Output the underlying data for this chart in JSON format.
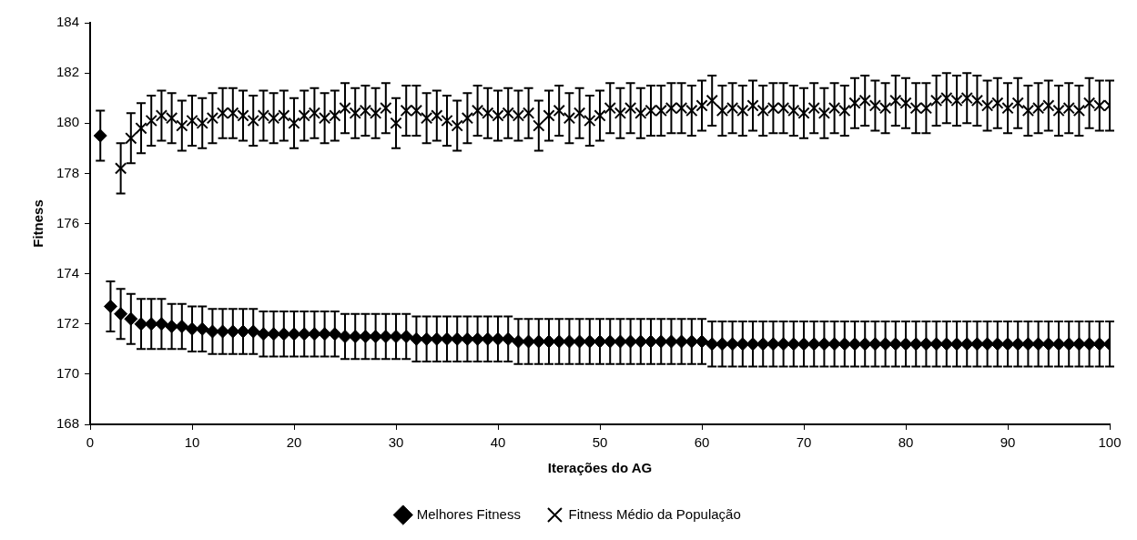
{
  "chart_data": {
    "type": "scatter",
    "xlabel": "Iterações do AG",
    "ylabel": "Fitness",
    "xlim": [
      0,
      100
    ],
    "xticks": [
      0,
      10,
      20,
      30,
      40,
      50,
      60,
      70,
      80,
      90,
      100
    ],
    "ylim": [
      168,
      184
    ],
    "yticks": [
      168,
      170,
      172,
      174,
      176,
      178,
      180,
      182,
      184
    ],
    "grid": false,
    "legend": "bottom",
    "series": [
      {
        "name": "Melhores Fitness",
        "color": "#000000",
        "marker": "diamond",
        "x": [
          1,
          2,
          3,
          4,
          5,
          6,
          7,
          8,
          9,
          10,
          11,
          12,
          13,
          14,
          15,
          16,
          17,
          18,
          19,
          20,
          21,
          22,
          23,
          24,
          25,
          26,
          27,
          28,
          29,
          30,
          31,
          32,
          33,
          34,
          35,
          36,
          37,
          38,
          39,
          40,
          41,
          42,
          43,
          44,
          45,
          46,
          47,
          48,
          49,
          50,
          51,
          52,
          53,
          54,
          55,
          56,
          57,
          58,
          59,
          60,
          61,
          62,
          63,
          64,
          65,
          66,
          67,
          68,
          69,
          70,
          71,
          72,
          73,
          74,
          75,
          76,
          77,
          78,
          79,
          80,
          81,
          82,
          83,
          84,
          85,
          86,
          87,
          88,
          89,
          90,
          91,
          92,
          93,
          94,
          95,
          96,
          97,
          98,
          99,
          100
        ],
        "values": [
          179.5,
          172.7,
          172.4,
          172.2,
          172.0,
          172.0,
          172.0,
          171.9,
          171.9,
          171.8,
          171.8,
          171.7,
          171.7,
          171.7,
          171.7,
          171.7,
          171.6,
          171.6,
          171.6,
          171.6,
          171.6,
          171.6,
          171.6,
          171.6,
          171.5,
          171.5,
          171.5,
          171.5,
          171.5,
          171.5,
          171.5,
          171.4,
          171.4,
          171.4,
          171.4,
          171.4,
          171.4,
          171.4,
          171.4,
          171.4,
          171.4,
          171.3,
          171.3,
          171.3,
          171.3,
          171.3,
          171.3,
          171.3,
          171.3,
          171.3,
          171.3,
          171.3,
          171.3,
          171.3,
          171.3,
          171.3,
          171.3,
          171.3,
          171.3,
          171.3,
          171.2,
          171.2,
          171.2,
          171.2,
          171.2,
          171.2,
          171.2,
          171.2,
          171.2,
          171.2,
          171.2,
          171.2,
          171.2,
          171.2,
          171.2,
          171.2,
          171.2,
          171.2,
          171.2,
          171.2,
          171.2,
          171.2,
          171.2,
          171.2,
          171.2,
          171.2,
          171.2,
          171.2,
          171.2,
          171.2,
          171.2,
          171.2,
          171.2,
          171.2,
          171.2,
          171.2,
          171.2,
          171.2,
          171.2,
          171.2
        ],
        "errors": [
          1,
          1,
          1,
          1,
          1,
          1,
          1,
          0.9,
          0.9,
          0.9,
          0.9,
          0.9,
          0.9,
          0.9,
          0.9,
          0.9,
          0.9,
          0.9,
          0.9,
          0.9,
          0.9,
          0.9,
          0.9,
          0.9,
          0.9,
          0.9,
          0.9,
          0.9,
          0.9,
          0.9,
          0.9,
          0.9,
          0.9,
          0.9,
          0.9,
          0.9,
          0.9,
          0.9,
          0.9,
          0.9,
          0.9,
          0.9,
          0.9,
          0.9,
          0.9,
          0.9,
          0.9,
          0.9,
          0.9,
          0.9,
          0.9,
          0.9,
          0.9,
          0.9,
          0.9,
          0.9,
          0.9,
          0.9,
          0.9,
          0.9,
          0.9,
          0.9,
          0.9,
          0.9,
          0.9,
          0.9,
          0.9,
          0.9,
          0.9,
          0.9,
          0.9,
          0.9,
          0.9,
          0.9,
          0.9,
          0.9,
          0.9,
          0.9,
          0.9,
          0.9,
          0.9,
          0.9,
          0.9,
          0.9,
          0.9,
          0.9,
          0.9,
          0.9,
          0.9,
          0.9,
          0.9,
          0.9,
          0.9,
          0.9,
          0.9,
          0.9,
          0.9,
          0.9,
          0.9,
          0.9
        ]
      },
      {
        "name": "Fitness Médio da População",
        "color": "#000000",
        "marker": "cross",
        "x": [
          3,
          4,
          5,
          6,
          7,
          8,
          9,
          10,
          11,
          12,
          13,
          14,
          15,
          16,
          17,
          18,
          19,
          20,
          21,
          22,
          23,
          24,
          25,
          26,
          27,
          28,
          29,
          30,
          31,
          32,
          33,
          34,
          35,
          36,
          37,
          38,
          39,
          40,
          41,
          42,
          43,
          44,
          45,
          46,
          47,
          48,
          49,
          50,
          51,
          52,
          53,
          54,
          55,
          56,
          57,
          58,
          59,
          60,
          61,
          62,
          63,
          64,
          65,
          66,
          67,
          68,
          69,
          70,
          71,
          72,
          73,
          74,
          75,
          76,
          77,
          78,
          79,
          80,
          81,
          82,
          83,
          84,
          85,
          86,
          87,
          88,
          89,
          90,
          91,
          92,
          93,
          94,
          95,
          96,
          97,
          98,
          99,
          100
        ],
        "values": [
          178.2,
          179.4,
          179.8,
          180.1,
          180.3,
          180.2,
          179.9,
          180.1,
          180.0,
          180.2,
          180.4,
          180.4,
          180.3,
          180.1,
          180.3,
          180.2,
          180.3,
          180.0,
          180.3,
          180.4,
          180.2,
          180.3,
          180.6,
          180.4,
          180.5,
          180.4,
          180.6,
          180.0,
          180.5,
          180.5,
          180.2,
          180.3,
          180.1,
          179.9,
          180.2,
          180.5,
          180.4,
          180.3,
          180.4,
          180.3,
          180.4,
          179.9,
          180.3,
          180.5,
          180.2,
          180.4,
          180.1,
          180.3,
          180.6,
          180.4,
          180.6,
          180.4,
          180.5,
          180.5,
          180.6,
          180.6,
          180.5,
          180.7,
          180.9,
          180.5,
          180.6,
          180.5,
          180.7,
          180.5,
          180.6,
          180.6,
          180.5,
          180.4,
          180.6,
          180.4,
          180.6,
          180.5,
          180.8,
          180.9,
          180.7,
          180.6,
          180.9,
          180.8,
          180.6,
          180.6,
          180.9,
          181.0,
          180.9,
          181.0,
          180.9,
          180.7,
          180.8,
          180.6,
          180.8,
          180.5,
          180.6,
          180.7,
          180.5,
          180.6,
          180.5,
          180.8,
          180.7,
          180.7
        ],
        "errors": [
          1,
          1,
          1,
          1,
          1,
          1,
          1,
          1,
          1,
          1,
          1,
          1,
          1,
          1,
          1,
          1,
          1,
          1,
          1,
          1,
          1,
          1,
          1,
          1,
          1,
          1,
          1,
          1,
          1,
          1,
          1,
          1,
          1,
          1,
          1,
          1,
          1,
          1,
          1,
          1,
          1,
          1,
          1,
          1,
          1,
          1,
          1,
          1,
          1,
          1,
          1,
          1,
          1,
          1,
          1,
          1,
          1,
          1,
          1,
          1,
          1,
          1,
          1,
          1,
          1,
          1,
          1,
          1,
          1,
          1,
          1,
          1,
          1,
          1,
          1,
          1,
          1,
          1,
          1,
          1,
          1,
          1,
          1,
          1,
          1,
          1,
          1,
          1,
          1,
          1,
          1,
          1,
          1,
          1,
          1,
          1,
          1,
          1
        ]
      }
    ]
  }
}
